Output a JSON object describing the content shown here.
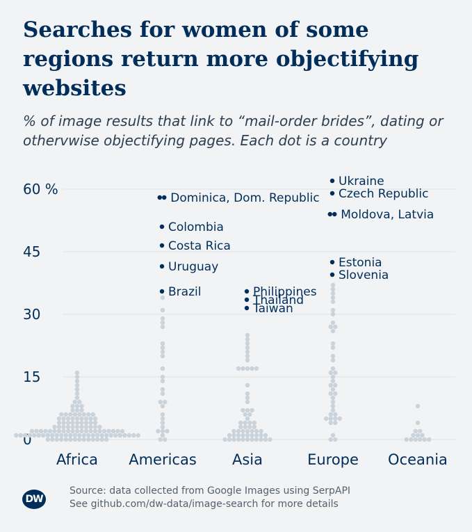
{
  "title": "Searches for women of some regions return more objectifying websites",
  "subtitle": "% of image results that link to “mail-order brides”, dating or othervwise objectifying pages. Each dot is a country",
  "footer": {
    "line1": "Source: data collected from Google Images using SerpAPI",
    "line2": "See github.com/dw-data/image-search for more details"
  },
  "logo_text": "DW",
  "colors": {
    "background": "#f1f3f5",
    "dot": "#cbd3da",
    "highlight": "#002d5a",
    "text": "#002d5a",
    "grid": "#dfe3e7"
  },
  "chart_data": {
    "type": "scatter",
    "title": "",
    "xlabel": "",
    "ylabel": "",
    "ylim": [
      0,
      62
    ],
    "y_ticks": [
      0,
      15,
      30,
      45,
      60
    ],
    "y_tick_labels": [
      "0",
      "15",
      "30",
      "45",
      "60 %"
    ],
    "grid": true,
    "categories": [
      "Africa",
      "Americas",
      "Asia",
      "Europe",
      "Oceania"
    ],
    "series": [
      {
        "category": "Africa",
        "values": [
          0,
          0,
          0,
          0,
          0,
          0,
          0,
          0,
          0,
          0,
          0,
          0,
          0,
          0,
          1,
          1,
          1,
          1,
          1,
          1,
          1,
          1,
          1,
          1,
          1,
          1,
          1,
          1,
          1,
          1,
          1,
          1,
          1,
          1,
          1,
          1,
          1,
          1,
          1,
          1,
          1,
          1,
          2,
          2,
          2,
          2,
          2,
          2,
          2,
          2,
          2,
          2,
          2,
          2,
          2,
          2,
          2,
          2,
          2,
          2,
          2,
          2,
          2,
          3,
          3,
          3,
          3,
          3,
          3,
          3,
          3,
          3,
          3,
          3,
          4,
          4,
          4,
          4,
          4,
          4,
          4,
          4,
          4,
          5,
          5,
          5,
          5,
          5,
          5,
          5,
          5,
          5,
          6,
          6,
          6,
          6,
          6,
          6,
          6,
          6,
          7,
          7,
          7,
          8,
          8,
          8,
          9,
          9,
          10,
          11,
          12,
          13,
          14,
          15,
          16
        ]
      },
      {
        "category": "Americas",
        "values": [
          0,
          0,
          1,
          2,
          2,
          2,
          3,
          4,
          5,
          6,
          8,
          9,
          9,
          11,
          12,
          14,
          15,
          17,
          20,
          21,
          22,
          23,
          27,
          28,
          29,
          31,
          34
        ]
      },
      {
        "category": "Asia",
        "values": [
          0,
          0,
          0,
          0,
          0,
          0,
          0,
          0,
          0,
          0,
          0,
          1,
          1,
          1,
          1,
          1,
          1,
          1,
          1,
          1,
          2,
          2,
          2,
          2,
          2,
          2,
          2,
          3,
          3,
          3,
          3,
          4,
          4,
          4,
          4,
          5,
          6,
          6,
          7,
          7,
          7,
          9,
          10,
          11,
          13,
          17,
          17,
          17,
          17,
          17,
          19,
          20,
          21,
          22,
          23,
          24,
          25
        ]
      },
      {
        "category": "Europe",
        "values": [
          0,
          0,
          1,
          4,
          4,
          5,
          5,
          5,
          5,
          6,
          6,
          7,
          8,
          9,
          10,
          11,
          11,
          12,
          13,
          13,
          14,
          15,
          16,
          16,
          17,
          19,
          20,
          22,
          23,
          26,
          27,
          27,
          28,
          30,
          31,
          33,
          34,
          35,
          36,
          37
        ]
      },
      {
        "category": "Oceania",
        "values": [
          0,
          0,
          0,
          0,
          0,
          0,
          1,
          1,
          1,
          2,
          2,
          4,
          8
        ]
      }
    ],
    "highlighted": [
      {
        "category": "Americas",
        "labels": [
          "Dominica",
          "Dom. Republic"
        ],
        "label": "Dominica, Dom. Republic",
        "values": [
          58,
          58
        ]
      },
      {
        "category": "Americas",
        "label": "Colombia",
        "values": [
          51
        ]
      },
      {
        "category": "Americas",
        "label": "Costa Rica",
        "values": [
          46.5
        ]
      },
      {
        "category": "Americas",
        "label": "Uruguay",
        "values": [
          41.5
        ]
      },
      {
        "category": "Americas",
        "label": "Brazil",
        "values": [
          35.5
        ]
      },
      {
        "category": "Asia",
        "label": "Philippines",
        "values": [
          35.5
        ]
      },
      {
        "category": "Asia",
        "label": "Thailand",
        "values": [
          33.5
        ]
      },
      {
        "category": "Asia",
        "label": "Taiwan",
        "values": [
          31.5
        ]
      },
      {
        "category": "Europe",
        "label": "Ukraine",
        "values": [
          62
        ]
      },
      {
        "category": "Europe",
        "label": "Czech Republic",
        "values": [
          59
        ]
      },
      {
        "category": "Europe",
        "labels": [
          "Moldova",
          "Latvia"
        ],
        "label": "Moldova, Latvia",
        "values": [
          54,
          54
        ]
      },
      {
        "category": "Europe",
        "label": "Estonia",
        "values": [
          42.5
        ]
      },
      {
        "category": "Europe",
        "label": "Slovenia",
        "values": [
          39.5
        ]
      }
    ]
  }
}
